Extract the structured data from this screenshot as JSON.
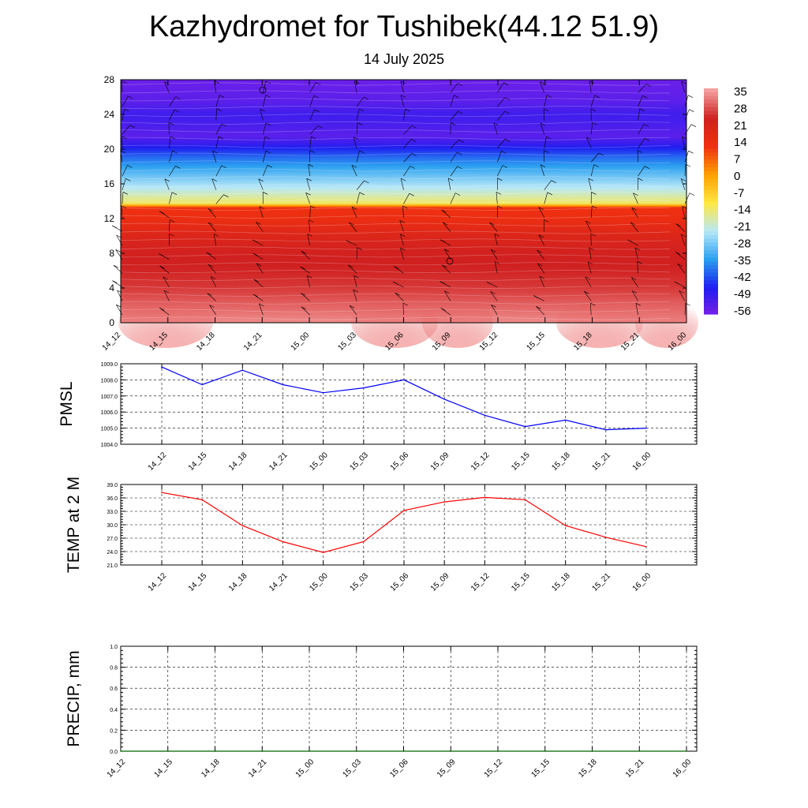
{
  "title": "Kazhydromet for Tushibek(44.12 51.9)",
  "subtitle": "14 July 2025",
  "chart_data": [
    {
      "type": "heatmap",
      "name": "temperature-wind-profile",
      "x_ticks": [
        "14_12",
        "14_15",
        "14_18",
        "14_21",
        "15_00",
        "15_03",
        "15_06",
        "15_09",
        "15_12",
        "15_15",
        "15_18",
        "15_21",
        "16_00"
      ],
      "y_ticks": [
        "0",
        "4",
        "8",
        "12",
        "16",
        "20",
        "24",
        "28"
      ],
      "ylim": [
        0,
        28
      ],
      "colorbar_labels": [
        "35",
        "28",
        "21",
        "14",
        "7",
        "0",
        "-7",
        "-14",
        "-21",
        "-28",
        "-35",
        "-42",
        "-49",
        "-56"
      ],
      "colorbar_range": [
        -60,
        39
      ],
      "profile_levels": [
        0,
        2,
        4,
        6,
        8,
        10,
        12,
        13.4,
        13.6,
        15,
        17,
        19,
        20.5,
        21.5,
        22.5,
        24,
        25.5,
        28
      ],
      "profile_temps": [
        37,
        33,
        29,
        27,
        26,
        22,
        16,
        14,
        -12,
        -20,
        -30,
        -40,
        -50,
        -56,
        -54,
        -52,
        -56,
        -58
      ],
      "barbs": "wind barbs overlaid on grid",
      "colors": {
        "stops": [
          "#7a1fe8",
          "#1e1ef0",
          "#2aa0f0",
          "#b8e8f8",
          "#ffe840",
          "#ffa000",
          "#f03010",
          "#d02020",
          "#f4a0a0"
        ]
      }
    },
    {
      "type": "line",
      "name": "PMSL",
      "ylabel": "PMSL",
      "x": [
        "14_12",
        "14_15",
        "14_18",
        "14_21",
        "15_00",
        "15_03",
        "15_06",
        "15_09",
        "15_12",
        "15_15",
        "15_18",
        "15_21",
        "16_00"
      ],
      "y_ticks": [
        "1009.0",
        "1008.0",
        "1007.0",
        "1006.0",
        "1005.0",
        "1004.0"
      ],
      "ylim": [
        1004,
        1009
      ],
      "series": [
        {
          "values": [
            1008.8,
            1007.7,
            1008.6,
            1007.7,
            1007.2,
            1007.5,
            1008.0,
            1006.8,
            1005.8,
            1005.1,
            1005.5,
            1004.9,
            1005.0
          ],
          "color": "#0000ff"
        }
      ]
    },
    {
      "type": "line",
      "name": "TEMP at 2 M",
      "ylabel": "TEMP at 2 M",
      "x": [
        "14_12",
        "14_15",
        "14_18",
        "14_21",
        "15_00",
        "15_03",
        "15_06",
        "15_09",
        "15_12",
        "15_15",
        "15_18",
        "15_21",
        "16_00"
      ],
      "y_ticks": [
        "39.0",
        "36.0",
        "33.0",
        "30.0",
        "27.0",
        "24.0",
        "21.0"
      ],
      "ylim": [
        21,
        39
      ],
      "series": [
        {
          "values": [
            37.2,
            35.6,
            29.8,
            26.2,
            23.8,
            26.2,
            33.2,
            35.1,
            36.1,
            35.6,
            29.8,
            27.2,
            25.1
          ],
          "color": "#ff0000"
        }
      ]
    },
    {
      "type": "line",
      "name": "PRECIP, mm",
      "ylabel": "PRECIP, mm",
      "x": [
        "14_12",
        "14_15",
        "14_18",
        "14_21",
        "15_00",
        "15_03",
        "15_06",
        "15_09",
        "15_12",
        "15_15",
        "15_18",
        "15_21",
        "16_00"
      ],
      "y_ticks": [
        "1.0",
        "0.8",
        "0.6",
        "0.4",
        "0.2",
        "0.0"
      ],
      "ylim": [
        0,
        1
      ],
      "series": [
        {
          "values": [
            0,
            0,
            0,
            0,
            0,
            0,
            0,
            0,
            0,
            0,
            0,
            0,
            0
          ],
          "color": "#006400"
        }
      ]
    }
  ]
}
